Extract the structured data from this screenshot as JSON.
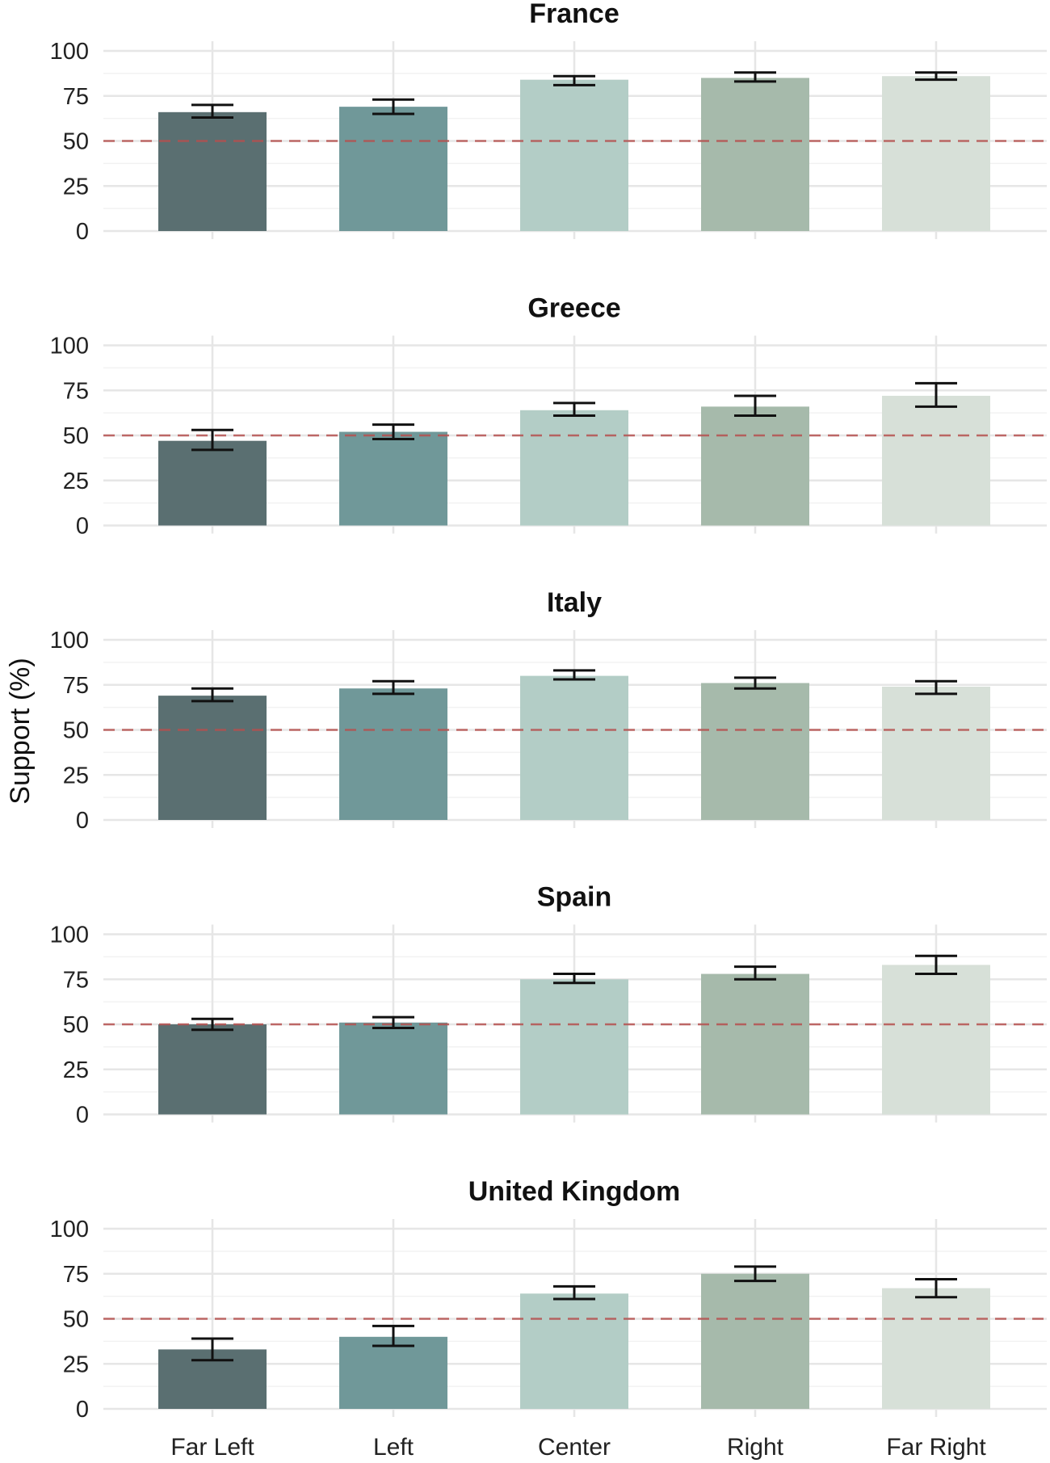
{
  "chart_data": {
    "type": "bar",
    "ylabel": "Support (%)",
    "xlabel": "",
    "ylim": [
      0,
      100
    ],
    "yticks": [
      0,
      25,
      50,
      75,
      100
    ],
    "reference_line": 50,
    "categories": [
      "Far Left",
      "Left",
      "Center",
      "Right",
      "Far Right"
    ],
    "colors": [
      "#556a6c",
      "#6b9596",
      "#b1cbc4",
      "#a3b8a8",
      "#d6dfd7"
    ],
    "reference_color": "#b5504f",
    "panels": [
      {
        "title": "France",
        "values": [
          66,
          69,
          84,
          85,
          86
        ],
        "err_low": [
          63,
          65,
          81,
          83,
          84
        ],
        "err_high": [
          70,
          73,
          86,
          88,
          88
        ]
      },
      {
        "title": "Greece",
        "values": [
          47,
          52,
          64,
          66,
          72
        ],
        "err_low": [
          42,
          48,
          61,
          61,
          66
        ],
        "err_high": [
          53,
          56,
          68,
          72,
          79
        ]
      },
      {
        "title": "Italy",
        "values": [
          69,
          73,
          80,
          76,
          74
        ],
        "err_low": [
          66,
          70,
          78,
          73,
          70
        ],
        "err_high": [
          73,
          77,
          83,
          79,
          77
        ]
      },
      {
        "title": "Spain",
        "values": [
          50,
          51,
          75,
          78,
          83
        ],
        "err_low": [
          47,
          48,
          73,
          75,
          78
        ],
        "err_high": [
          53,
          54,
          78,
          82,
          88
        ]
      },
      {
        "title": "United Kingdom",
        "values": [
          33,
          40,
          64,
          75,
          67
        ],
        "err_low": [
          27,
          35,
          61,
          71,
          62
        ],
        "err_high": [
          39,
          46,
          68,
          79,
          72
        ]
      }
    ]
  }
}
